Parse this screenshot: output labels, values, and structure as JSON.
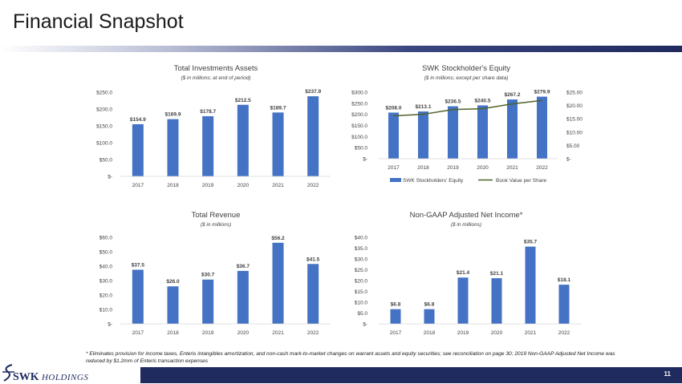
{
  "page": {
    "title": "Financial Snapshot",
    "page_number": "11",
    "footnote": "* Eliminates provision for income taxes, Enteris intangibles amortization, and non-cash mark-to-market changes on warrant assets and equity securities; see reconciliation on page 30; 2019 Non-GAAP Adjusted Net Income was reduced by $1.2mm of Enteris transaction expenses",
    "logo": {
      "main": "SWK",
      "sub": "HOLDINGS"
    },
    "colors": {
      "bar": "#4472c4",
      "line": "#4f6228",
      "navy": "#1f2a5e"
    }
  },
  "chart_data": [
    {
      "type": "bar",
      "title": "Total Investments Assets",
      "subtitle": "($ in millions; at end of period)",
      "categories": [
        "2017",
        "2018",
        "2019",
        "2020",
        "2021",
        "2022"
      ],
      "values": [
        154.9,
        169.9,
        178.7,
        212.5,
        189.7,
        237.9
      ],
      "value_labels": [
        "$154.9",
        "$169.9",
        "$178.7",
        "$212.5",
        "$189.7",
        "$237.9"
      ],
      "ylim": [
        0,
        250
      ],
      "yticks": [
        0,
        50,
        100,
        150,
        200,
        250
      ],
      "ytick_labels": [
        "$-",
        "$50.0",
        "$100.0",
        "$150.0",
        "$200.0",
        "$250.0"
      ]
    },
    {
      "type": "bar+line",
      "title": "SWK Stockholder's Equity",
      "subtitle": "($ in millions; except per share data)",
      "categories": [
        "2017",
        "2018",
        "2019",
        "2020",
        "2021",
        "2022"
      ],
      "series": [
        {
          "name": "SWK Stockholders' Equity",
          "type": "bar",
          "axis": "left",
          "values": [
            208.0,
            213.1,
            236.5,
            240.5,
            267.2,
            279.9
          ],
          "value_labels": [
            "$208.0",
            "$213.1",
            "$236.5",
            "$240.5",
            "$267.2",
            "$279.9"
          ]
        },
        {
          "name": "Book Value per Share",
          "type": "line",
          "axis": "right",
          "values": [
            16.1,
            16.7,
            18.5,
            18.8,
            20.6,
            21.9
          ]
        }
      ],
      "ylim": [
        0,
        300
      ],
      "yticks": [
        0,
        50,
        100,
        150,
        200,
        250,
        300
      ],
      "ytick_labels": [
        "$-",
        "$50.0",
        "$100.0",
        "$150.0",
        "$200.0",
        "$250.0",
        "$300.0"
      ],
      "y2lim": [
        0,
        25
      ],
      "y2ticks": [
        0,
        5,
        10,
        15,
        20,
        25
      ],
      "y2tick_labels": [
        "$-",
        "$5.00",
        "$10.00",
        "$15.00",
        "$20.00",
        "$25.00"
      ],
      "legend": "bottom"
    },
    {
      "type": "bar",
      "title": "Total Revenue",
      "subtitle": "($ in millions)",
      "categories": [
        "2017",
        "2018",
        "2019",
        "2020",
        "2021",
        "2022"
      ],
      "values": [
        37.5,
        26.0,
        30.7,
        36.7,
        56.2,
        41.5
      ],
      "value_labels": [
        "$37.5",
        "$26.0",
        "$30.7",
        "$36.7",
        "$56.2",
        "$41.5"
      ],
      "ylim": [
        0,
        60
      ],
      "yticks": [
        0,
        10,
        20,
        30,
        40,
        50,
        60
      ],
      "ytick_labels": [
        "$-",
        "$10.0",
        "$20.0",
        "$30.0",
        "$40.0",
        "$50.0",
        "$60.0"
      ]
    },
    {
      "type": "bar",
      "title": "Non-GAAP Adjusted Net Income*",
      "subtitle": "($ in millions)",
      "categories": [
        "2017",
        "2018",
        "2019",
        "2020",
        "2021",
        "2022"
      ],
      "values": [
        6.8,
        6.8,
        21.4,
        21.1,
        35.7,
        18.1
      ],
      "value_labels": [
        "$6.8",
        "$6.8",
        "$21.4",
        "$21.1",
        "$35.7",
        "$18.1"
      ],
      "ylim": [
        0,
        40
      ],
      "yticks": [
        0,
        5,
        10,
        15,
        20,
        25,
        30,
        35,
        40
      ],
      "ytick_labels": [
        "$-",
        "$5.0",
        "$10.0",
        "$15.0",
        "$20.0",
        "$25.0",
        "$30.0",
        "$35.0",
        "$40.0"
      ]
    }
  ]
}
